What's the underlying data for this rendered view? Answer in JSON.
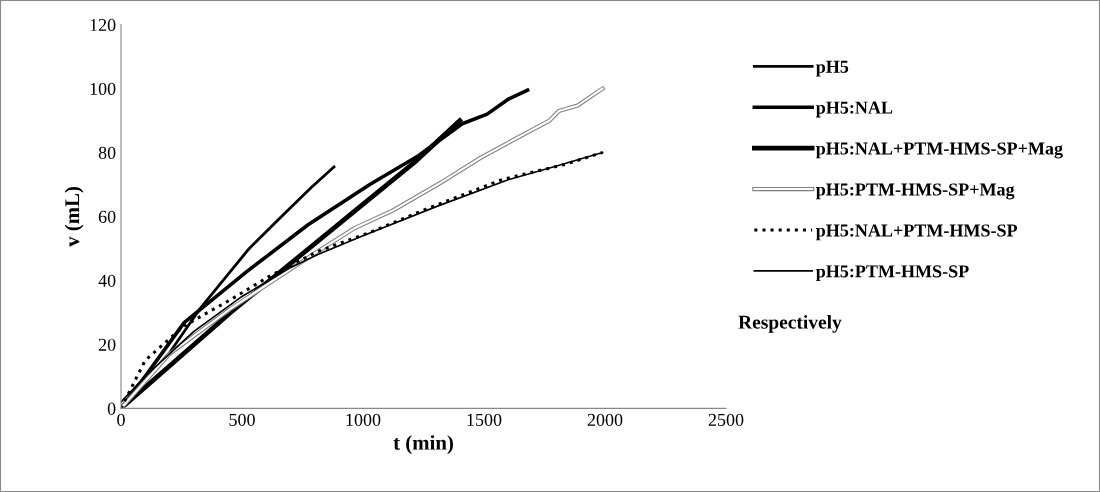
{
  "chart_data": {
    "type": "line",
    "xlabel": "t (min)",
    "ylabel": "v (mL)",
    "xlim": [
      0,
      2500
    ],
    "xticks": [
      0,
      500,
      1000,
      1500,
      2000,
      2500
    ],
    "ylim": [
      0,
      120
    ],
    "yticks": [
      0,
      20,
      40,
      60,
      80,
      100,
      120
    ],
    "grid": false,
    "legend": "right",
    "marker": "none",
    "annotations": [
      "Respectively"
    ],
    "series": [
      {
        "name": "pH5",
        "color": "#000000",
        "line_style": "solid",
        "x": [
          0,
          197,
          325,
          427,
          530,
          657,
          785,
          880
        ],
        "values": [
          0,
          17,
          31,
          40.5,
          50,
          59.5,
          69,
          75.5
        ]
      },
      {
        "name": "pH5:NAL",
        "color": "#000000",
        "line_style": "solid",
        "x": [
          0,
          100,
          261,
          517,
          773,
          1028,
          1229,
          1410,
          1513,
          1603,
          1680
        ],
        "values": [
          0,
          10,
          26.8,
          42.6,
          57.4,
          70,
          79,
          89,
          92,
          96.8,
          99.5
        ]
      },
      {
        "name": "pH5:NAL+PTM-HMS-SP+Mag",
        "color": "#000000",
        "line_style": "solid",
        "x": [
          0,
          197,
          453,
          709,
          964,
          1220,
          1400
        ],
        "values": [
          0,
          13,
          30,
          45.8,
          61.6,
          77.4,
          90
        ]
      },
      {
        "name": "pH5:PTM-HMS-SP+Mag",
        "color": "#808080",
        "line_style": "solid",
        "x": [
          0,
          200,
          450,
          811,
          964,
          1126,
          1320,
          1487,
          1616,
          1771,
          1809,
          1887,
          1990
        ],
        "values": [
          0,
          17,
          31,
          49,
          56.3,
          62,
          70.5,
          78.4,
          83.7,
          90,
          93,
          94.7,
          100
        ]
      },
      {
        "name": "pH5:NAL+PTM-HMS-SP",
        "color": "#000000",
        "line_style": "dotted",
        "x": [
          0,
          100,
          261,
          453,
          620,
          811,
          1028,
          1271,
          1577,
          1835,
          1990
        ],
        "values": [
          0,
          15,
          25.8,
          34,
          41.6,
          49,
          55,
          62.6,
          71.6,
          76.3,
          80
        ]
      },
      {
        "name": "pH5:PTM-HMS-SP",
        "color": "#000000",
        "line_style": "solid",
        "x": [
          0,
          100,
          300,
          500,
          700,
          811,
          1000,
          1300,
          1600,
          1800,
          1990
        ],
        "values": [
          2,
          10,
          24,
          35,
          44,
          48,
          54,
          63,
          71.5,
          75.8,
          80
        ]
      }
    ]
  }
}
